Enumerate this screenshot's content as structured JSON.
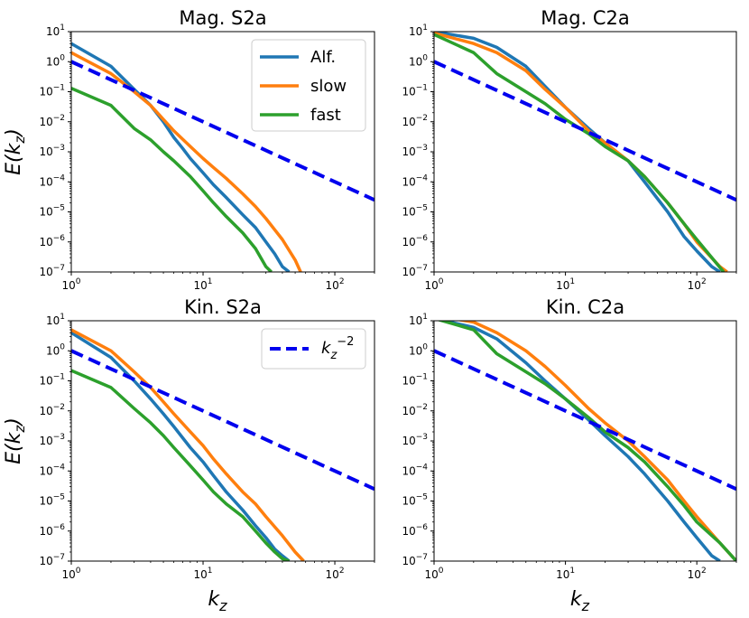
{
  "colors": {
    "alf": "#1f77b4",
    "slow": "#ff7f0e",
    "fast": "#2ca02c",
    "ref": "#0000ee"
  },
  "chart_data": [
    {
      "type": "line",
      "title": "Mag. S2a",
      "xscale": "log",
      "yscale": "log",
      "xlim": [
        1,
        200
      ],
      "ylim": [
        1e-07,
        10
      ],
      "ylabel": "E(k_z)",
      "xlabel": "",
      "legend": {
        "placement": "top-right",
        "entries": [
          "Alf.",
          "slow",
          "fast"
        ]
      },
      "series": [
        {
          "name": "Alf.",
          "color_key": "alf",
          "x": [
            1,
            2,
            3,
            4,
            5,
            6,
            7,
            8,
            10,
            12,
            15,
            20,
            25,
            30,
            35,
            40,
            45
          ],
          "y": [
            4,
            0.7,
            0.12,
            0.035,
            0.01,
            0.003,
            0.0013,
            0.0006,
            0.0002,
            8e-05,
            3e-05,
            8e-06,
            3e-06,
            1e-06,
            4e-07,
            1.5e-07,
            1e-07
          ]
        },
        {
          "name": "slow",
          "color_key": "slow",
          "x": [
            1,
            2,
            3,
            4,
            5,
            6,
            8,
            10,
            12,
            15,
            20,
            25,
            30,
            40,
            50,
            55
          ],
          "y": [
            2,
            0.4,
            0.1,
            0.035,
            0.012,
            0.005,
            0.0015,
            0.0006,
            0.0003,
            0.00013,
            4e-05,
            1.5e-05,
            6e-06,
            1.2e-06,
            2.5e-07,
            1e-07
          ]
        },
        {
          "name": "fast",
          "color_key": "fast",
          "x": [
            1,
            2,
            3,
            4,
            5,
            6,
            8,
            10,
            12,
            15,
            20,
            25,
            30,
            33
          ],
          "y": [
            0.13,
            0.035,
            0.006,
            0.0025,
            0.001,
            0.0005,
            0.00015,
            5e-05,
            2e-05,
            7e-06,
            2e-06,
            6e-07,
            1.5e-07,
            1e-07
          ]
        },
        {
          "name": "",
          "style": "dashed",
          "color_key": "ref",
          "x": [
            1,
            200
          ],
          "y": [
            1,
            2.5e-05
          ]
        }
      ]
    },
    {
      "type": "line",
      "title": "Mag. C2a",
      "xscale": "log",
      "yscale": "log",
      "xlim": [
        1,
        200
      ],
      "ylim": [
        1e-07,
        10
      ],
      "ylabel": "",
      "xlabel": "",
      "series": [
        {
          "name": "Alf.",
          "color_key": "alf",
          "x": [
            1,
            2,
            3,
            5,
            7,
            10,
            15,
            20,
            30,
            40,
            60,
            80,
            100,
            130,
            150
          ],
          "y": [
            10,
            6,
            3,
            0.7,
            0.15,
            0.03,
            0.006,
            0.002,
            0.0005,
            0.0001,
            1e-05,
            1.5e-06,
            5e-07,
            1.5e-07,
            1e-07
          ]
        },
        {
          "name": "slow",
          "color_key": "slow",
          "x": [
            1,
            2,
            3,
            5,
            7,
            10,
            15,
            20,
            30,
            40,
            60,
            80,
            100,
            150,
            170
          ],
          "y": [
            9,
            4,
            2,
            0.5,
            0.12,
            0.03,
            0.005,
            0.002,
            0.0005,
            0.00015,
            2e-05,
            4e-06,
            1e-06,
            1.5e-07,
            1e-07
          ]
        },
        {
          "name": "fast",
          "color_key": "fast",
          "x": [
            1,
            2,
            3,
            5,
            7,
            10,
            15,
            20,
            30,
            40,
            60,
            80,
            100,
            130,
            160
          ],
          "y": [
            8,
            2,
            0.4,
            0.1,
            0.04,
            0.012,
            0.004,
            0.0015,
            0.0005,
            0.00015,
            2e-05,
            4e-06,
            1.2e-06,
            3e-07,
            1e-07
          ]
        },
        {
          "name": "",
          "style": "dashed",
          "color_key": "ref",
          "x": [
            1,
            200
          ],
          "y": [
            1,
            2.5e-05
          ]
        }
      ]
    },
    {
      "type": "line",
      "title": "Kin. S2a",
      "xscale": "log",
      "yscale": "log",
      "xlim": [
        1,
        200
      ],
      "ylim": [
        1e-07,
        10
      ],
      "ylabel": "E(k_z)",
      "xlabel": "k_z",
      "legend": {
        "placement": "top-right",
        "entries": [
          "k_z^{-2}"
        ]
      },
      "series": [
        {
          "name": "Alf.",
          "color_key": "alf",
          "x": [
            1,
            2,
            3,
            4,
            5,
            6,
            8,
            10,
            12,
            15,
            20,
            25,
            30,
            35,
            40,
            45
          ],
          "y": [
            4,
            0.6,
            0.1,
            0.025,
            0.008,
            0.003,
            0.0006,
            0.0002,
            7e-05,
            2e-05,
            5e-06,
            1.5e-06,
            6e-07,
            2.5e-07,
            1.5e-07,
            1e-07
          ]
        },
        {
          "name": "slow",
          "color_key": "slow",
          "x": [
            1,
            2,
            3,
            4,
            5,
            6,
            8,
            10,
            12,
            15,
            20,
            25,
            30,
            40,
            50,
            58
          ],
          "y": [
            5,
            1,
            0.2,
            0.06,
            0.02,
            0.008,
            0.002,
            0.0007,
            0.00025,
            8e-05,
            2e-05,
            8e-06,
            3e-06,
            7e-07,
            2e-07,
            1e-07
          ]
        },
        {
          "name": "fast",
          "color_key": "fast",
          "x": [
            1,
            2,
            3,
            4,
            5,
            6,
            8,
            10,
            12,
            15,
            20,
            25,
            30,
            35,
            40,
            45
          ],
          "y": [
            0.22,
            0.06,
            0.012,
            0.004,
            0.0015,
            0.0006,
            0.00015,
            5e-05,
            2e-05,
            8e-06,
            3e-06,
            1e-06,
            4e-07,
            2e-07,
            1.2e-07,
            1e-07
          ]
        },
        {
          "name": "",
          "style": "dashed",
          "color_key": "ref",
          "x": [
            1,
            200
          ],
          "y": [
            1,
            2.5e-05
          ]
        }
      ]
    },
    {
      "type": "line",
      "title": "Kin. C2a",
      "xscale": "log",
      "yscale": "log",
      "xlim": [
        1,
        200
      ],
      "ylim": [
        1e-07,
        10
      ],
      "ylabel": "",
      "xlabel": "k_z",
      "series": [
        {
          "name": "Alf.",
          "color_key": "alf",
          "x": [
            1,
            2,
            3,
            5,
            7,
            10,
            15,
            20,
            30,
            40,
            60,
            80,
            100,
            130,
            150
          ],
          "y": [
            12,
            6,
            2.5,
            0.4,
            0.1,
            0.025,
            0.005,
            0.0015,
            0.0003,
            8e-05,
            1e-05,
            2e-06,
            6e-07,
            1.5e-07,
            1e-07
          ]
        },
        {
          "name": "slow",
          "color_key": "slow",
          "x": [
            1,
            2,
            3,
            5,
            7,
            10,
            15,
            20,
            30,
            40,
            60,
            80,
            100,
            150,
            200
          ],
          "y": [
            15,
            9,
            4,
            1,
            0.3,
            0.07,
            0.012,
            0.004,
            0.001,
            0.0003,
            5e-05,
            1e-05,
            3e-06,
            4e-07,
            1e-07
          ]
        },
        {
          "name": "fast",
          "color_key": "fast",
          "x": [
            1,
            2,
            3,
            5,
            7,
            10,
            15,
            20,
            30,
            40,
            60,
            80,
            100,
            150,
            200
          ],
          "y": [
            12,
            5,
            0.8,
            0.2,
            0.08,
            0.025,
            0.006,
            0.002,
            0.0006,
            0.0002,
            3e-05,
            7e-06,
            2e-06,
            4e-07,
            1e-07
          ]
        },
        {
          "name": "",
          "style": "dashed",
          "color_key": "ref",
          "x": [
            1,
            200
          ],
          "y": [
            1,
            2.5e-05
          ]
        }
      ]
    }
  ]
}
